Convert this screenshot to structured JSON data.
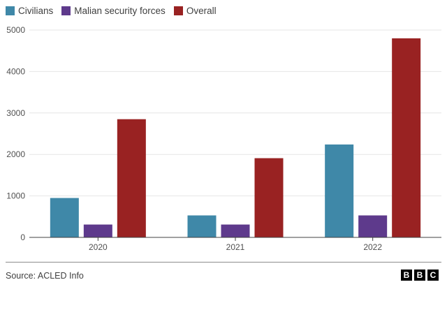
{
  "chart_data": {
    "type": "bar",
    "categories": [
      "2020",
      "2021",
      "2022"
    ],
    "series": [
      {
        "name": "Civilians",
        "color": "#3f88a8",
        "values": [
          950,
          530,
          2240
        ]
      },
      {
        "name": "Malian security forces",
        "color": "#5e3a8c",
        "values": [
          310,
          310,
          530
        ]
      },
      {
        "name": "Overall",
        "color": "#992222",
        "values": [
          2850,
          1910,
          4800
        ]
      }
    ],
    "ylim": [
      0,
      5000
    ],
    "yticks": [
      0,
      1000,
      2000,
      3000,
      4000,
      5000
    ],
    "grid": true,
    "legend": "top-left",
    "title": "",
    "xlabel": "",
    "ylabel": ""
  },
  "source": "Source: ACLED Info",
  "logo": [
    "B",
    "B",
    "C"
  ]
}
